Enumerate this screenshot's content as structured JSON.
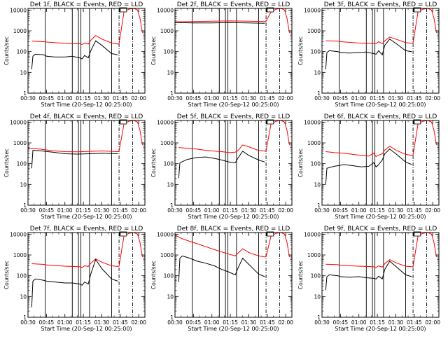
{
  "chart_data": [
    {
      "type": "line",
      "title": "Det 1f, BLACK = Events, RED = LLD",
      "xlabel": "Start Time (20-Sep-12 00:25:00)",
      "ylabel": "Counts/sec",
      "xticks": [
        "00:30",
        "00:45",
        "01:00",
        "01:15",
        "01:30",
        "01:45",
        "02:00"
      ],
      "yticks": [
        "1",
        "10",
        "100",
        "1000",
        "10000"
      ],
      "ylim": [
        1,
        12000
      ],
      "xlim": [
        "00:30",
        "02:05"
      ],
      "y_scale": "log",
      "grid": false,
      "series": [
        {
          "color": "#ff0000",
          "x": [
            "00:33",
            "00:43",
            "00:45",
            "00:52",
            "01:00",
            "01:06",
            "01:12",
            "01:14",
            "01:16",
            "01:19",
            "01:21",
            "01:25",
            "01:30",
            "01:38",
            "01:43",
            "01:44",
            "01:48",
            "01:52",
            "01:56",
            "01:59",
            "02:01",
            "02:03"
          ],
          "values": [
            320,
            300,
            290,
            270,
            250,
            240,
            240,
            220,
            260,
            230,
            350,
            600,
            400,
            260,
            230,
            240,
            8000,
            11000,
            12000,
            10000,
            4000,
            800
          ]
        },
        {
          "color": "#000000",
          "x": [
            "00:33",
            "00:34",
            "00:36",
            "00:43",
            "00:45",
            "00:52",
            "01:00",
            "01:06",
            "01:12",
            "01:14",
            "01:16",
            "01:19",
            "01:21",
            "01:25",
            "01:30",
            "01:38",
            "01:43"
          ],
          "values": [
            14,
            60,
            75,
            70,
            60,
            55,
            55,
            60,
            50,
            45,
            65,
            50,
            110,
            330,
            200,
            80,
            70
          ]
        }
      ]
    },
    {
      "type": "line",
      "title": "Det 2f, BLACK = Events, RED = LLD",
      "xlabel": "Start Time (20-Sep-12 00:25:00)",
      "ylabel": "Counts/sec",
      "xticks": [
        "00:30",
        "00:45",
        "01:00",
        "01:15",
        "01:30",
        "01:45",
        "02:00"
      ],
      "yticks": [
        "1",
        "10",
        "100",
        "1000",
        "10000"
      ],
      "ylim": [
        1,
        12000
      ],
      "xlim": [
        "00:30",
        "02:05"
      ],
      "y_scale": "log",
      "grid": false,
      "series": [
        {
          "color": "#ff0000",
          "x": [
            "00:30",
            "00:45",
            "01:00",
            "01:15",
            "01:30",
            "01:43",
            "01:44",
            "01:48",
            "01:52",
            "01:56",
            "01:59",
            "02:01",
            "02:03"
          ],
          "values": [
            2700,
            2800,
            2900,
            3000,
            2900,
            2800,
            2900,
            8000,
            11000,
            12000,
            10000,
            4000,
            800
          ]
        },
        {
          "color": "#000000",
          "x": [
            "00:30",
            "00:45",
            "01:00",
            "01:15",
            "01:30",
            "01:43"
          ],
          "values": [
            2500,
            2400,
            2400,
            2500,
            2400,
            2300
          ]
        }
      ]
    },
    {
      "type": "line",
      "title": "Det 3f, BLACK = Events, RED = LLD",
      "xlabel": "Start Time (20-Sep-12 00:25:00)",
      "ylabel": "Counts/sec",
      "xticks": [
        "00:30",
        "00:45",
        "01:00",
        "01:15",
        "01:30",
        "01:45",
        "02:00"
      ],
      "yticks": [
        "1",
        "10",
        "100",
        "1000",
        "10000"
      ],
      "ylim": [
        1,
        12000
      ],
      "xlim": [
        "00:30",
        "02:05"
      ],
      "y_scale": "log",
      "grid": false,
      "series": [
        {
          "color": "#ff0000",
          "x": [
            "00:33",
            "00:43",
            "00:45",
            "00:52",
            "01:00",
            "01:06",
            "01:12",
            "01:14",
            "01:16",
            "01:19",
            "01:21",
            "01:25",
            "01:30",
            "01:38",
            "01:43",
            "01:44",
            "01:48",
            "01:52",
            "01:56",
            "01:59",
            "02:01",
            "02:03"
          ],
          "values": [
            330,
            320,
            300,
            280,
            260,
            250,
            250,
            240,
            300,
            240,
            330,
            500,
            400,
            270,
            250,
            260,
            8000,
            11000,
            12000,
            10000,
            4000,
            800
          ]
        },
        {
          "color": "#000000",
          "x": [
            "00:33",
            "00:34",
            "00:36",
            "00:43",
            "00:45",
            "00:52",
            "01:00",
            "01:06",
            "01:12",
            "01:14",
            "01:16",
            "01:19",
            "01:21",
            "01:25",
            "01:30",
            "01:38",
            "01:43"
          ],
          "values": [
            14,
            90,
            110,
            100,
            90,
            85,
            90,
            95,
            80,
            75,
            110,
            70,
            200,
            400,
            250,
            110,
            100
          ]
        }
      ]
    },
    {
      "type": "line",
      "title": "Det 4f, BLACK = Events, RED = LLD",
      "xlabel": "Start Time (20-Sep-12 00:25:00)",
      "ylabel": "Counts/sec",
      "xticks": [
        "00:30",
        "00:45",
        "01:00",
        "01:15",
        "01:30",
        "01:45",
        "02:00"
      ],
      "yticks": [
        "1",
        "10",
        "100",
        "1000",
        "10000"
      ],
      "ylim": [
        1,
        12000
      ],
      "xlim": [
        "00:30",
        "02:05"
      ],
      "y_scale": "log",
      "grid": false,
      "series": [
        {
          "color": "#ff0000",
          "x": [
            "00:30",
            "00:40",
            "00:50",
            "01:00",
            "01:10",
            "01:20",
            "01:30",
            "01:43",
            "01:44",
            "01:48",
            "01:52",
            "01:56",
            "01:59",
            "02:01",
            "02:03"
          ],
          "values": [
            550,
            500,
            420,
            380,
            370,
            390,
            410,
            380,
            400,
            8000,
            11000,
            12000,
            10000,
            4000,
            800
          ]
        },
        {
          "color": "#000000",
          "x": [
            "00:33",
            "00:34",
            "00:40",
            "00:50",
            "01:00",
            "01:10",
            "01:20",
            "01:30",
            "01:43"
          ],
          "values": [
            60,
            440,
            420,
            360,
            300,
            290,
            300,
            320,
            300
          ]
        }
      ]
    },
    {
      "type": "line",
      "title": "Det 5f, BLACK = Events, RED = LLD",
      "xlabel": "Start Time (20-Sep-12 00:25:00)",
      "ylabel": "Counts/sec",
      "xticks": [
        "00:30",
        "00:45",
        "01:00",
        "01:15",
        "01:30",
        "01:45",
        "02:00"
      ],
      "yticks": [
        "1",
        "10",
        "100",
        "1000",
        "10000"
      ],
      "ylim": [
        1,
        12000
      ],
      "xlim": [
        "00:30",
        "02:05"
      ],
      "y_scale": "log",
      "grid": false,
      "series": [
        {
          "color": "#ff0000",
          "x": [
            "00:33",
            "00:40",
            "00:48",
            "00:55",
            "01:02",
            "01:08",
            "01:14",
            "01:19",
            "01:21",
            "01:25",
            "01:30",
            "01:38",
            "01:43",
            "01:44",
            "01:48",
            "01:52",
            "01:56",
            "01:59",
            "02:01",
            "02:03"
          ],
          "values": [
            600,
            550,
            500,
            440,
            400,
            380,
            340,
            360,
            420,
            800,
            650,
            430,
            400,
            420,
            8000,
            11000,
            12000,
            10000,
            4000,
            800
          ]
        },
        {
          "color": "#000000",
          "x": [
            "00:33",
            "00:34",
            "00:40",
            "00:48",
            "00:55",
            "01:02",
            "01:08",
            "01:14",
            "01:19",
            "01:21",
            "01:25",
            "01:30",
            "01:38",
            "01:43"
          ],
          "values": [
            20,
            110,
            160,
            200,
            210,
            180,
            150,
            120,
            110,
            180,
            400,
            250,
            150,
            120
          ]
        }
      ]
    },
    {
      "type": "line",
      "title": "Det 6f, BLACK = Events, RED = LLD",
      "xlabel": "Start Time (20-Sep-12 00:25:00)",
      "ylabel": "Counts/sec",
      "xticks": [
        "00:30",
        "00:45",
        "01:00",
        "01:15",
        "01:30",
        "01:45",
        "02:00"
      ],
      "yticks": [
        "1",
        "10",
        "100",
        "1000",
        "10000"
      ],
      "ylim": [
        1,
        12000
      ],
      "xlim": [
        "00:30",
        "02:05"
      ],
      "y_scale": "log",
      "grid": false,
      "series": [
        {
          "color": "#ff0000",
          "x": [
            "00:33",
            "00:40",
            "00:48",
            "00:55",
            "01:02",
            "01:08",
            "01:12",
            "01:14",
            "01:16",
            "01:19",
            "01:21",
            "01:25",
            "01:30",
            "01:38",
            "01:43",
            "01:44",
            "01:48",
            "01:52",
            "01:56",
            "01:59",
            "02:01",
            "02:03"
          ],
          "values": [
            380,
            340,
            320,
            280,
            250,
            230,
            320,
            220,
            260,
            300,
            450,
            700,
            450,
            280,
            250,
            260,
            8000,
            11000,
            12000,
            10000,
            4000,
            800
          ]
        },
        {
          "color": "#000000",
          "x": [
            "00:33",
            "00:34",
            "00:40",
            "00:48",
            "00:55",
            "01:02",
            "01:08",
            "01:12",
            "01:14",
            "01:16",
            "01:19",
            "01:21",
            "01:25",
            "01:30",
            "01:38",
            "01:43"
          ],
          "values": [
            10,
            60,
            75,
            90,
            80,
            70,
            75,
            110,
            70,
            90,
            150,
            300,
            500,
            300,
            120,
            90
          ]
        }
      ]
    },
    {
      "type": "line",
      "title": "Det 7f, BLACK = Events, RED = LLD",
      "xlabel": "Start Time (20-Sep-12 00:25:00)",
      "ylabel": "Counts/sec",
      "xticks": [
        "00:30",
        "00:45",
        "01:00",
        "01:15",
        "01:30",
        "01:45",
        "02:00"
      ],
      "yticks": [
        "1",
        "10",
        "100",
        "1000",
        "10000"
      ],
      "ylim": [
        1,
        12000
      ],
      "xlim": [
        "00:30",
        "02:05"
      ],
      "y_scale": "log",
      "grid": false,
      "series": [
        {
          "color": "#ff0000",
          "x": [
            "00:33",
            "00:43",
            "00:45",
            "00:52",
            "01:00",
            "01:06",
            "01:12",
            "01:14",
            "01:16",
            "01:19",
            "01:21",
            "01:25",
            "01:30",
            "01:38",
            "01:43",
            "01:44",
            "01:48",
            "01:52",
            "01:56",
            "01:59",
            "02:01",
            "02:03"
          ],
          "values": [
            380,
            350,
            330,
            310,
            290,
            280,
            270,
            250,
            300,
            280,
            400,
            650,
            450,
            300,
            280,
            290,
            8000,
            11000,
            12000,
            10000,
            4000,
            800
          ]
        },
        {
          "color": "#000000",
          "x": [
            "00:33",
            "00:34",
            "00:36",
            "00:43",
            "00:45",
            "00:52",
            "01:00",
            "01:06",
            "01:12",
            "01:14",
            "01:16",
            "01:19",
            "01:21",
            "01:25",
            "01:30",
            "01:38",
            "01:43"
          ],
          "values": [
            3,
            55,
            70,
            60,
            55,
            50,
            45,
            45,
            40,
            35,
            50,
            40,
            120,
            600,
            220,
            70,
            55
          ]
        }
      ]
    },
    {
      "type": "line",
      "title": "Det 8f, BLACK = Events, RED = LLD",
      "xlabel": "Start Time (20-Sep-12 00:25:00)",
      "ylabel": "Counts/sec",
      "xticks": [
        "00:30",
        "00:45",
        "01:00",
        "01:15",
        "01:30",
        "01:45",
        "02:00"
      ],
      "yticks": [
        "1",
        "10",
        "100",
        "1000",
        "10000"
      ],
      "ylim": [
        1,
        12000
      ],
      "xlim": [
        "00:30",
        "02:05"
      ],
      "y_scale": "log",
      "grid": false,
      "series": [
        {
          "color": "#ff0000",
          "x": [
            "00:30",
            "00:36",
            "00:42",
            "00:48",
            "00:55",
            "01:02",
            "01:08",
            "01:14",
            "01:19",
            "01:21",
            "01:25",
            "01:30",
            "01:38",
            "01:43",
            "01:44",
            "01:48",
            "01:52",
            "01:56",
            "01:59",
            "02:01",
            "02:03"
          ],
          "values": [
            9000,
            6000,
            4500,
            3500,
            2500,
            1800,
            1400,
            1100,
            900,
            1200,
            2000,
            1300,
            900,
            800,
            850,
            8000,
            11000,
            12000,
            10000,
            4000,
            800
          ]
        },
        {
          "color": "#000000",
          "x": [
            "00:33",
            "00:34",
            "00:36",
            "00:42",
            "00:48",
            "00:55",
            "01:02",
            "01:08",
            "01:14",
            "01:19",
            "01:21",
            "01:25",
            "01:30",
            "01:38",
            "01:43"
          ],
          "values": [
            50,
            700,
            900,
            700,
            500,
            400,
            300,
            200,
            150,
            110,
            220,
            700,
            350,
            120,
            90
          ]
        }
      ]
    },
    {
      "type": "line",
      "title": "Det 9f, BLACK = Events, RED = LLD",
      "xlabel": "Start Time (20-Sep-12 00:25:00)",
      "ylabel": "Counts/sec",
      "xticks": [
        "00:30",
        "00:45",
        "01:00",
        "01:15",
        "01:30",
        "01:45",
        "02:00"
      ],
      "yticks": [
        "1",
        "10",
        "100",
        "1000",
        "10000"
      ],
      "ylim": [
        1,
        12000
      ],
      "xlim": [
        "00:30",
        "02:05"
      ],
      "y_scale": "log",
      "grid": false,
      "series": [
        {
          "color": "#ff0000",
          "x": [
            "00:33",
            "00:43",
            "00:45",
            "00:52",
            "01:00",
            "01:06",
            "01:12",
            "01:14",
            "01:16",
            "01:19",
            "01:21",
            "01:25",
            "01:30",
            "01:38",
            "01:43",
            "01:44",
            "01:48",
            "01:52",
            "01:56",
            "01:59",
            "02:01",
            "02:03"
          ],
          "values": [
            360,
            340,
            320,
            300,
            290,
            280,
            270,
            250,
            300,
            260,
            380,
            600,
            420,
            290,
            270,
            280,
            8000,
            11000,
            12000,
            10000,
            4000,
            800
          ]
        },
        {
          "color": "#000000",
          "x": [
            "00:33",
            "00:34",
            "00:36",
            "00:43",
            "00:45",
            "00:52",
            "01:00",
            "01:06",
            "01:12",
            "01:14",
            "01:16",
            "01:19",
            "01:21",
            "01:25",
            "01:30",
            "01:38",
            "01:43"
          ],
          "values": [
            20,
            90,
            110,
            100,
            90,
            85,
            90,
            80,
            75,
            70,
            95,
            70,
            200,
            500,
            280,
            110,
            90
          ]
        }
      ]
    }
  ]
}
